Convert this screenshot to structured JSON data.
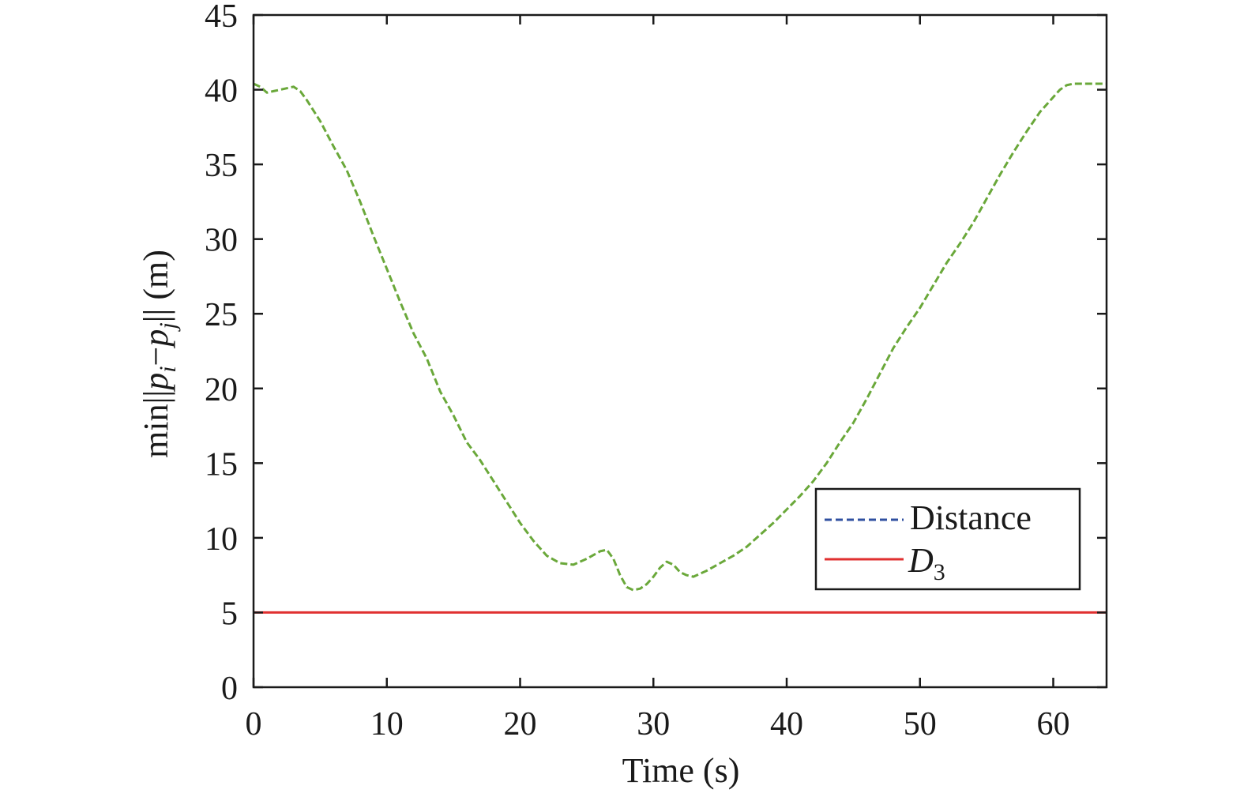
{
  "chart_data": {
    "type": "line",
    "xlabel": "Time (s)",
    "ylabel": {
      "prefix": "min||",
      "p": "p",
      "i": "i",
      "minus": "−",
      "j": "j",
      "suffix": "|| (m)"
    },
    "xlim": [
      0,
      64
    ],
    "ylim": [
      0,
      45
    ],
    "xticks": [
      0,
      10,
      20,
      30,
      40,
      50,
      60
    ],
    "yticks": [
      0,
      5,
      10,
      15,
      20,
      25,
      30,
      35,
      40,
      45
    ],
    "grid": false,
    "legend_position": "right-middle",
    "legend": {
      "distance_label": "Distance",
      "d3_label": "D",
      "d3_subscript": "3"
    },
    "series": [
      {
        "name": "Distance",
        "style": "dashed",
        "color": "#6aa83a",
        "legend_color": "#3050a0",
        "x": [
          0,
          0.5,
          1,
          1.5,
          2,
          2.5,
          3,
          3.5,
          4,
          5,
          6,
          7,
          8,
          9,
          10,
          11,
          12,
          13,
          14,
          15,
          16,
          17,
          18,
          19,
          20,
          21,
          22,
          23,
          24,
          25,
          26,
          26.5,
          27,
          27.5,
          28,
          28.5,
          29,
          29.5,
          30,
          30.5,
          31,
          31.5,
          32,
          32.5,
          33,
          33.5,
          34,
          35,
          36,
          37,
          38,
          39,
          40,
          41,
          42,
          43,
          44,
          45,
          46,
          47,
          48,
          49,
          50,
          51,
          52,
          53,
          54,
          55,
          56,
          57,
          58,
          59,
          60,
          60.5,
          61,
          61.5,
          62,
          63,
          64
        ],
        "y": [
          40.4,
          40.2,
          39.8,
          39.9,
          40.0,
          40.1,
          40.2,
          39.9,
          39.3,
          37.9,
          36.2,
          34.6,
          32.5,
          30.2,
          28.0,
          25.8,
          23.7,
          22.0,
          19.8,
          18.2,
          16.4,
          15.2,
          13.8,
          12.4,
          11.0,
          9.8,
          8.8,
          8.3,
          8.2,
          8.6,
          9.1,
          9.2,
          8.6,
          7.5,
          6.7,
          6.5,
          6.6,
          6.9,
          7.4,
          8.0,
          8.4,
          8.2,
          7.7,
          7.5,
          7.4,
          7.6,
          7.8,
          8.3,
          8.8,
          9.4,
          10.2,
          11.0,
          11.9,
          12.8,
          13.8,
          15.0,
          16.4,
          17.7,
          19.3,
          21.0,
          22.7,
          24.1,
          25.4,
          26.9,
          28.4,
          29.7,
          31.1,
          32.7,
          34.3,
          35.8,
          37.2,
          38.5,
          39.5,
          40.0,
          40.3,
          40.4,
          40.4,
          40.4,
          40.4
        ]
      },
      {
        "name": "D3",
        "style": "solid",
        "color": "#e03030",
        "x": [
          0,
          64
        ],
        "y": [
          5,
          5
        ]
      }
    ]
  }
}
